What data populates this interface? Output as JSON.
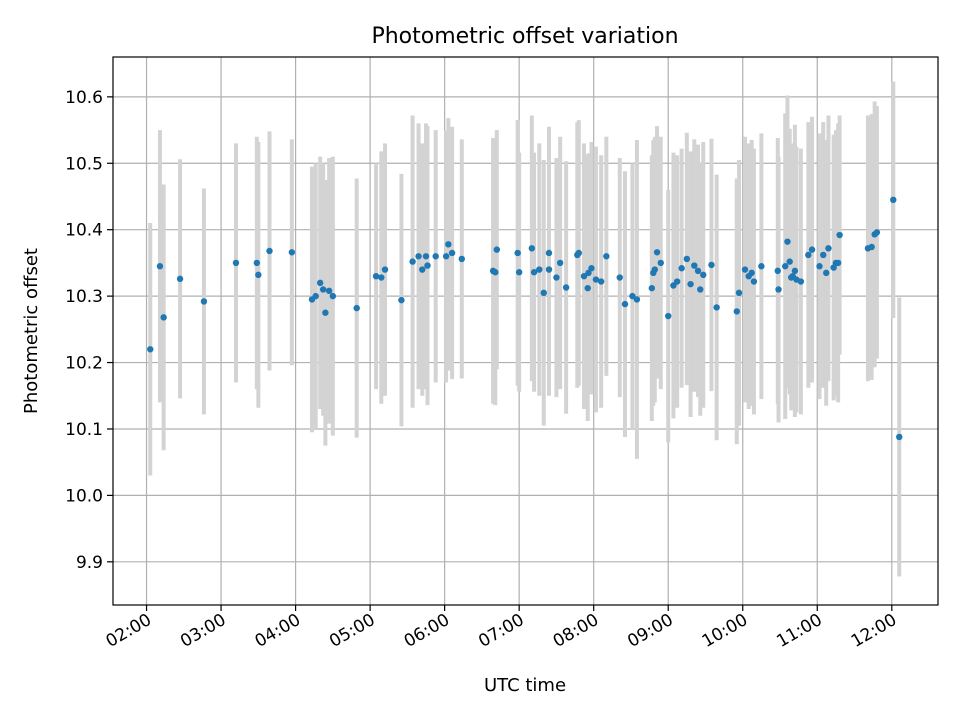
{
  "chart_data": {
    "type": "scatter",
    "title": "Photometric offset variation",
    "xlabel": "UTC time",
    "ylabel": "Photometric offset",
    "xlim_hours": [
      1.55,
      12.62
    ],
    "ylim": [
      9.835,
      10.66
    ],
    "grid": true,
    "marker_color": "#1f77b4",
    "errorbar_color": "#d3d3d3",
    "x_ticks": [
      {
        "hour": 2,
        "label": "02:00"
      },
      {
        "hour": 3,
        "label": "03:00"
      },
      {
        "hour": 4,
        "label": "04:00"
      },
      {
        "hour": 5,
        "label": "05:00"
      },
      {
        "hour": 6,
        "label": "06:00"
      },
      {
        "hour": 7,
        "label": "07:00"
      },
      {
        "hour": 8,
        "label": "08:00"
      },
      {
        "hour": 9,
        "label": "09:00"
      },
      {
        "hour": 10,
        "label": "10:00"
      },
      {
        "hour": 11,
        "label": "11:00"
      },
      {
        "hour": 12,
        "label": "12:00"
      }
    ],
    "y_ticks": [
      {
        "value": 9.9,
        "label": "9.9"
      },
      {
        "value": 10.0,
        "label": "10.0"
      },
      {
        "value": 10.1,
        "label": "10.1"
      },
      {
        "value": 10.2,
        "label": "10.2"
      },
      {
        "value": 10.3,
        "label": "10.3"
      },
      {
        "value": 10.4,
        "label": "10.4"
      },
      {
        "value": 10.5,
        "label": "10.5"
      },
      {
        "value": 10.6,
        "label": "10.6"
      }
    ],
    "series": [
      {
        "name": "Photometric offset",
        "points": [
          [
            2.05,
            10.22,
            0.19
          ],
          [
            2.18,
            10.345,
            0.205
          ],
          [
            2.23,
            10.268,
            0.2
          ],
          [
            2.45,
            10.326,
            0.18
          ],
          [
            2.77,
            10.292,
            0.17
          ],
          [
            3.2,
            10.35,
            0.18
          ],
          [
            3.48,
            10.35,
            0.19
          ],
          [
            3.5,
            10.332,
            0.2
          ],
          [
            3.65,
            10.368,
            0.18
          ],
          [
            3.95,
            10.366,
            0.17
          ],
          [
            4.22,
            10.295,
            0.2
          ],
          [
            4.27,
            10.3,
            0.2
          ],
          [
            4.33,
            10.32,
            0.19
          ],
          [
            4.37,
            10.31,
            0.19
          ],
          [
            4.4,
            10.275,
            0.2
          ],
          [
            4.45,
            10.308,
            0.2
          ],
          [
            4.5,
            10.3,
            0.21
          ],
          [
            4.82,
            10.282,
            0.195
          ],
          [
            5.08,
            10.33,
            0.17
          ],
          [
            5.15,
            10.328,
            0.19
          ],
          [
            5.2,
            10.34,
            0.19
          ],
          [
            5.42,
            10.294,
            0.19
          ],
          [
            5.57,
            10.352,
            0.22
          ],
          [
            5.65,
            10.36,
            0.2
          ],
          [
            5.7,
            10.34,
            0.19
          ],
          [
            5.77,
            10.346,
            0.21
          ],
          [
            5.75,
            10.36,
            0.2
          ],
          [
            5.88,
            10.36,
            0.19
          ],
          [
            6.02,
            10.36,
            0.19
          ],
          [
            6.05,
            10.378,
            0.19
          ],
          [
            6.1,
            10.365,
            0.19
          ],
          [
            6.23,
            10.356,
            0.18
          ],
          [
            6.65,
            10.338,
            0.2
          ],
          [
            6.68,
            10.336,
            0.2
          ],
          [
            6.7,
            10.37,
            0.18
          ],
          [
            6.98,
            10.365,
            0.2
          ],
          [
            7.0,
            10.336,
            0.18
          ],
          [
            7.17,
            10.372,
            0.2
          ],
          [
            7.2,
            10.336,
            0.18
          ],
          [
            7.27,
            10.34,
            0.19
          ],
          [
            7.33,
            10.305,
            0.2
          ],
          [
            7.4,
            10.34,
            0.19
          ],
          [
            7.4,
            10.365,
            0.19
          ],
          [
            7.5,
            10.328,
            0.18
          ],
          [
            7.55,
            10.35,
            0.19
          ],
          [
            7.63,
            10.313,
            0.19
          ],
          [
            7.78,
            10.362,
            0.2
          ],
          [
            7.8,
            10.365,
            0.2
          ],
          [
            7.87,
            10.33,
            0.2
          ],
          [
            7.92,
            10.312,
            0.2
          ],
          [
            7.93,
            10.335,
            0.18
          ],
          [
            7.97,
            10.342,
            0.19
          ],
          [
            8.03,
            10.325,
            0.2
          ],
          [
            8.1,
            10.322,
            0.19
          ],
          [
            8.17,
            10.36,
            0.18
          ],
          [
            8.35,
            10.328,
            0.18
          ],
          [
            8.42,
            10.288,
            0.2
          ],
          [
            8.52,
            10.3,
            0.2
          ],
          [
            8.58,
            10.295,
            0.24
          ],
          [
            8.78,
            10.312,
            0.2
          ],
          [
            8.8,
            10.335,
            0.2
          ],
          [
            8.82,
            10.34,
            0.2
          ],
          [
            8.85,
            10.366,
            0.19
          ],
          [
            8.9,
            10.35,
            0.19
          ],
          [
            9.0,
            10.27,
            0.19
          ],
          [
            9.07,
            10.316,
            0.2
          ],
          [
            9.12,
            10.322,
            0.19
          ],
          [
            9.18,
            10.342,
            0.18
          ],
          [
            9.25,
            10.356,
            0.19
          ],
          [
            9.3,
            10.318,
            0.2
          ],
          [
            9.35,
            10.346,
            0.19
          ],
          [
            9.4,
            10.338,
            0.19
          ],
          [
            9.43,
            10.31,
            0.19
          ],
          [
            9.47,
            10.332,
            0.2
          ],
          [
            9.58,
            10.347,
            0.19
          ],
          [
            9.65,
            10.283,
            0.2
          ],
          [
            9.92,
            10.277,
            0.2
          ],
          [
            9.95,
            10.305,
            0.2
          ],
          [
            10.03,
            10.34,
            0.2
          ],
          [
            10.08,
            10.33,
            0.2
          ],
          [
            10.12,
            10.335,
            0.2
          ],
          [
            10.15,
            10.322,
            0.2
          ],
          [
            10.25,
            10.345,
            0.2
          ],
          [
            10.47,
            10.338,
            0.2
          ],
          [
            10.48,
            10.31,
            0.2
          ],
          [
            10.57,
            10.345,
            0.23
          ],
          [
            10.6,
            10.382,
            0.22
          ],
          [
            10.63,
            10.352,
            0.2
          ],
          [
            10.65,
            10.328,
            0.2
          ],
          [
            10.67,
            10.33,
            0.2
          ],
          [
            10.7,
            10.338,
            0.22
          ],
          [
            10.72,
            10.325,
            0.2
          ],
          [
            10.78,
            10.322,
            0.2
          ],
          [
            10.88,
            10.362,
            0.2
          ],
          [
            10.93,
            10.37,
            0.2
          ],
          [
            11.03,
            10.345,
            0.2
          ],
          [
            11.08,
            10.362,
            0.2
          ],
          [
            11.12,
            10.335,
            0.2
          ],
          [
            11.15,
            10.372,
            0.2
          ],
          [
            11.22,
            10.343,
            0.2
          ],
          [
            11.25,
            10.35,
            0.2
          ],
          [
            11.28,
            10.35,
            0.21
          ],
          [
            11.3,
            10.392,
            0.18
          ],
          [
            11.68,
            10.372,
            0.2
          ],
          [
            11.73,
            10.374,
            0.2
          ],
          [
            11.77,
            10.393,
            0.2
          ],
          [
            11.8,
            10.396,
            0.19
          ],
          [
            12.02,
            10.445,
            0.178
          ],
          [
            12.1,
            10.088,
            0.21
          ]
        ]
      }
    ]
  }
}
